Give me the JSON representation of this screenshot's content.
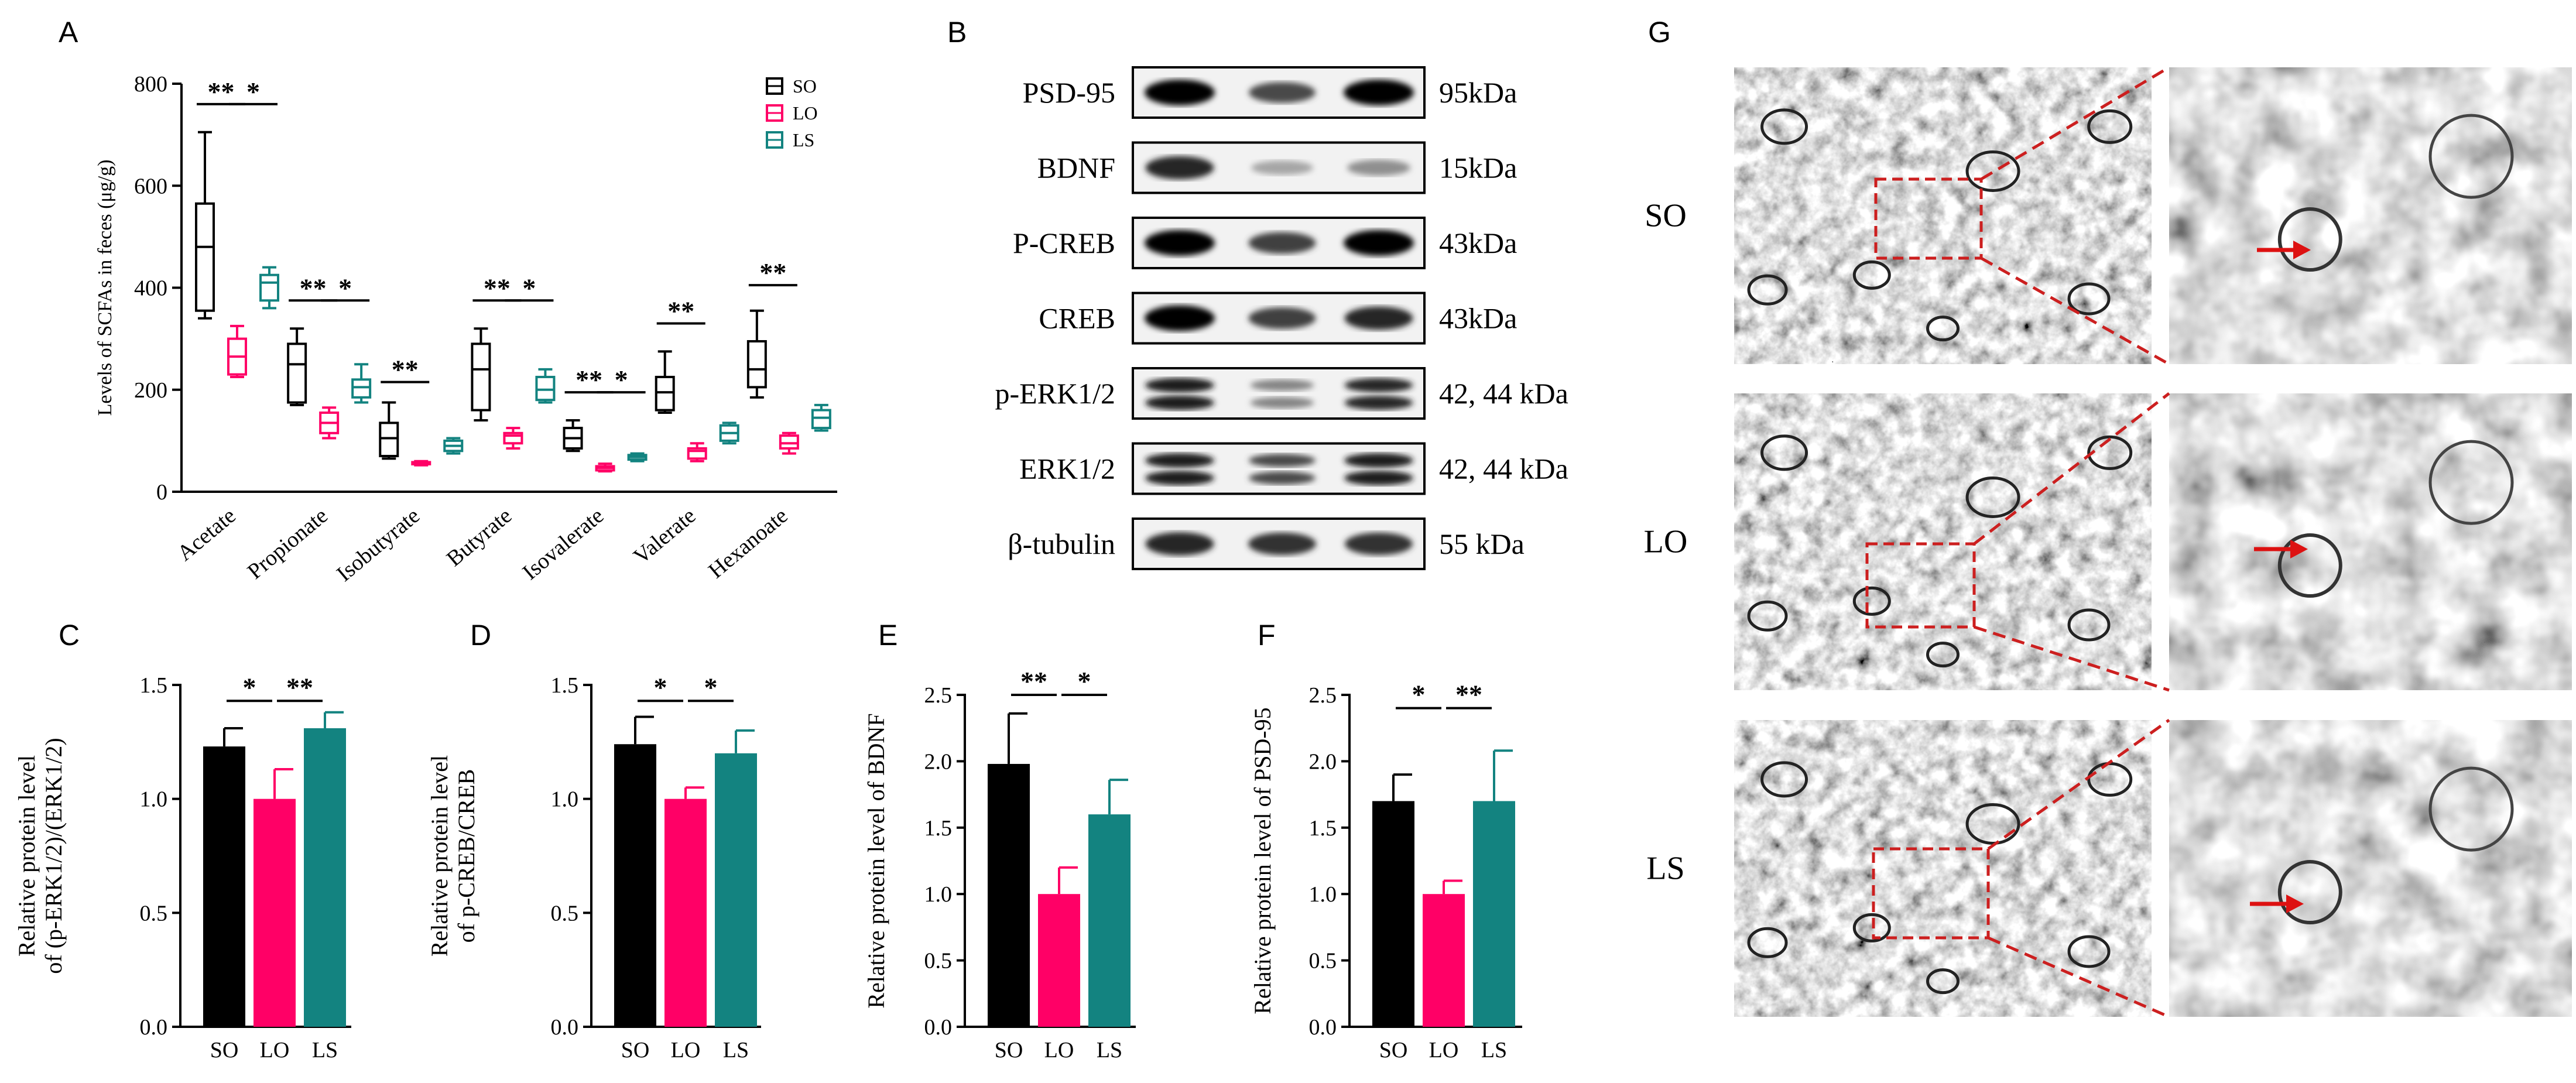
{
  "panels": {
    "A": "A",
    "B": "B",
    "C": "C",
    "D": "D",
    "E": "E",
    "F": "F",
    "G": "G"
  },
  "colors": {
    "SO": "#000000",
    "LO": "#ff0066",
    "LS": "#138380"
  },
  "chart_data": [
    {
      "id": "A",
      "type": "boxplot",
      "ylabel": "Levels of SCFAs in feces (μg/g)",
      "ylim": [
        0,
        800
      ],
      "yticks": [
        0,
        200,
        400,
        600,
        800
      ],
      "groups": [
        "SO",
        "LO",
        "LS"
      ],
      "legend_position": "top-right",
      "categories": [
        "Acetate",
        "Propionate",
        "Isobutyrate",
        "Butyrate",
        "Isovalerate",
        "Valerate",
        "Hexanoate"
      ],
      "series": [
        {
          "name": "SO",
          "boxes": [
            {
              "min": 340,
              "q1": 355,
              "median": 480,
              "q3": 565,
              "max": 705
            },
            {
              "min": 170,
              "q1": 175,
              "median": 250,
              "q3": 290,
              "max": 320
            },
            {
              "min": 65,
              "q1": 70,
              "median": 105,
              "q3": 135,
              "max": 175
            },
            {
              "min": 140,
              "q1": 160,
              "median": 240,
              "q3": 290,
              "max": 320
            },
            {
              "min": 80,
              "q1": 85,
              "median": 105,
              "q3": 125,
              "max": 140
            },
            {
              "min": 155,
              "q1": 160,
              "median": 195,
              "q3": 225,
              "max": 275
            },
            {
              "min": 185,
              "q1": 205,
              "median": 240,
              "q3": 295,
              "max": 355
            }
          ]
        },
        {
          "name": "LO",
          "boxes": [
            {
              "min": 225,
              "q1": 230,
              "median": 265,
              "q3": 300,
              "max": 325
            },
            {
              "min": 105,
              "q1": 115,
              "median": 135,
              "q3": 155,
              "max": 165
            },
            {
              "min": 52,
              "q1": 54,
              "median": 56,
              "q3": 58,
              "max": 60
            },
            {
              "min": 85,
              "q1": 95,
              "median": 110,
              "q3": 115,
              "max": 125
            },
            {
              "min": 40,
              "q1": 42,
              "median": 47,
              "q3": 50,
              "max": 55
            },
            {
              "min": 60,
              "q1": 65,
              "median": 80,
              "q3": 85,
              "max": 95
            },
            {
              "min": 75,
              "q1": 85,
              "median": 95,
              "q3": 110,
              "max": 115
            }
          ]
        },
        {
          "name": "LS",
          "boxes": [
            {
              "min": 360,
              "q1": 375,
              "median": 410,
              "q3": 425,
              "max": 440
            },
            {
              "min": 175,
              "q1": 185,
              "median": 205,
              "q3": 220,
              "max": 250
            },
            {
              "min": 75,
              "q1": 80,
              "median": 90,
              "q3": 100,
              "max": 105
            },
            {
              "min": 175,
              "q1": 180,
              "median": 200,
              "q3": 225,
              "max": 240
            },
            {
              "min": 60,
              "q1": 63,
              "median": 68,
              "q3": 72,
              "max": 75
            },
            {
              "min": 95,
              "q1": 100,
              "median": 115,
              "q3": 130,
              "max": 135
            },
            {
              "min": 120,
              "q1": 125,
              "median": 145,
              "q3": 160,
              "max": 170
            }
          ]
        }
      ],
      "significance": [
        {
          "category": 0,
          "from": "SO",
          "to": "LO",
          "label": "**",
          "y": 760
        },
        {
          "category": 0,
          "from": "LO",
          "to": "LS",
          "label": "*",
          "y": 760
        },
        {
          "category": 1,
          "from": "SO",
          "to": "LO",
          "label": "**",
          "y": 375
        },
        {
          "category": 1,
          "from": "LO",
          "to": "LS",
          "label": "*",
          "y": 375
        },
        {
          "category": 2,
          "from": "SO",
          "to": "LO",
          "label": "**",
          "y": 215
        },
        {
          "category": 3,
          "from": "SO",
          "to": "LO",
          "label": "**",
          "y": 375
        },
        {
          "category": 3,
          "from": "LO",
          "to": "LS",
          "label": "*",
          "y": 375
        },
        {
          "category": 4,
          "from": "SO",
          "to": "LO",
          "label": "**",
          "y": 195
        },
        {
          "category": 4,
          "from": "LO",
          "to": "LS",
          "label": "*",
          "y": 195
        },
        {
          "category": 5,
          "from": "SO",
          "to": "LO",
          "label": "**",
          "y": 330
        },
        {
          "category": 6,
          "from": "SO",
          "to": "LO",
          "label": "**",
          "y": 405
        }
      ]
    },
    {
      "id": "C",
      "type": "bar",
      "ylabel": [
        "Relative protein level",
        "of (p-ERK1/2)/(ERK1/2)"
      ],
      "categories": [
        "SO",
        "LO",
        "LS"
      ],
      "values": [
        1.23,
        1.0,
        1.31
      ],
      "errors": [
        0.08,
        0.13,
        0.07
      ],
      "ylim": [
        0,
        1.5
      ],
      "yticks": [
        0.0,
        0.5,
        1.0,
        1.5
      ],
      "tick_decimals": 1,
      "significance": [
        {
          "from": 0,
          "to": 1,
          "label": "*",
          "y": 1.43
        },
        {
          "from": 1,
          "to": 2,
          "label": "**",
          "y": 1.43
        }
      ]
    },
    {
      "id": "D",
      "type": "bar",
      "ylabel": [
        "Relative protein level",
        "of p-CREB/CREB"
      ],
      "categories": [
        "SO",
        "LO",
        "LS"
      ],
      "values": [
        1.24,
        1.0,
        1.2
      ],
      "errors": [
        0.12,
        0.05,
        0.1
      ],
      "ylim": [
        0,
        1.5
      ],
      "yticks": [
        0.0,
        0.5,
        1.0,
        1.5
      ],
      "tick_decimals": 1,
      "significance": [
        {
          "from": 0,
          "to": 1,
          "label": "*",
          "y": 1.43
        },
        {
          "from": 1,
          "to": 2,
          "label": "*",
          "y": 1.43
        }
      ]
    },
    {
      "id": "E",
      "type": "bar",
      "ylabel": [
        "Relative protein level of BDNF"
      ],
      "categories": [
        "SO",
        "LO",
        "LS"
      ],
      "values": [
        1.98,
        1.0,
        1.6
      ],
      "errors": [
        0.38,
        0.2,
        0.26
      ],
      "ylim": [
        0,
        2.5
      ],
      "yticks": [
        0.0,
        0.5,
        1.0,
        1.5,
        2.0,
        2.5
      ],
      "tick_decimals": 1,
      "significance": [
        {
          "from": 0,
          "to": 1,
          "label": "**",
          "y": 2.5
        },
        {
          "from": 1,
          "to": 2,
          "label": "*",
          "y": 2.5
        }
      ]
    },
    {
      "id": "F",
      "type": "bar",
      "ylabel": [
        "Relative protein level of  PSD-95"
      ],
      "categories": [
        "SO",
        "LO",
        "LS"
      ],
      "values": [
        1.7,
        1.0,
        1.7
      ],
      "errors": [
        0.2,
        0.1,
        0.38
      ],
      "ylim": [
        0,
        2.5
      ],
      "yticks": [
        0.0,
        0.5,
        1.0,
        1.5,
        2.0,
        2.5
      ],
      "tick_decimals": 1,
      "significance": [
        {
          "from": 0,
          "to": 1,
          "label": "*",
          "y": 2.4
        },
        {
          "from": 1,
          "to": 2,
          "label": "**",
          "y": 2.4
        }
      ]
    }
  ],
  "western_blot": {
    "rows": [
      {
        "protein": "PSD-95",
        "size": "95kDa",
        "bands": 1,
        "intensity": [
          1.0,
          0.7,
          1.0
        ]
      },
      {
        "protein": "BDNF",
        "size": "15kDa",
        "bands": 1,
        "intensity": [
          0.85,
          0.3,
          0.4
        ]
      },
      {
        "protein": "P-CREB",
        "size": "43kDa",
        "bands": 1,
        "intensity": [
          1.0,
          0.75,
          1.0
        ]
      },
      {
        "protein": "CREB",
        "size": "43kDa",
        "bands": 1,
        "intensity": [
          1.0,
          0.75,
          0.85
        ]
      },
      {
        "protein": "p-ERK1/2",
        "size": "42, 44 kDa",
        "bands": 2,
        "intensity": [
          0.9,
          0.45,
          0.85
        ]
      },
      {
        "protein": "ERK1/2",
        "size": "42, 44 kDa",
        "bands": 2,
        "intensity": [
          0.9,
          0.7,
          0.9
        ]
      },
      {
        "protein": "β-tubulin",
        "size": "55 kDa",
        "bands": 1,
        "intensity": [
          0.85,
          0.8,
          0.8
        ]
      }
    ]
  },
  "em_images": {
    "rows": [
      "SO",
      "LO",
      "LS"
    ]
  }
}
